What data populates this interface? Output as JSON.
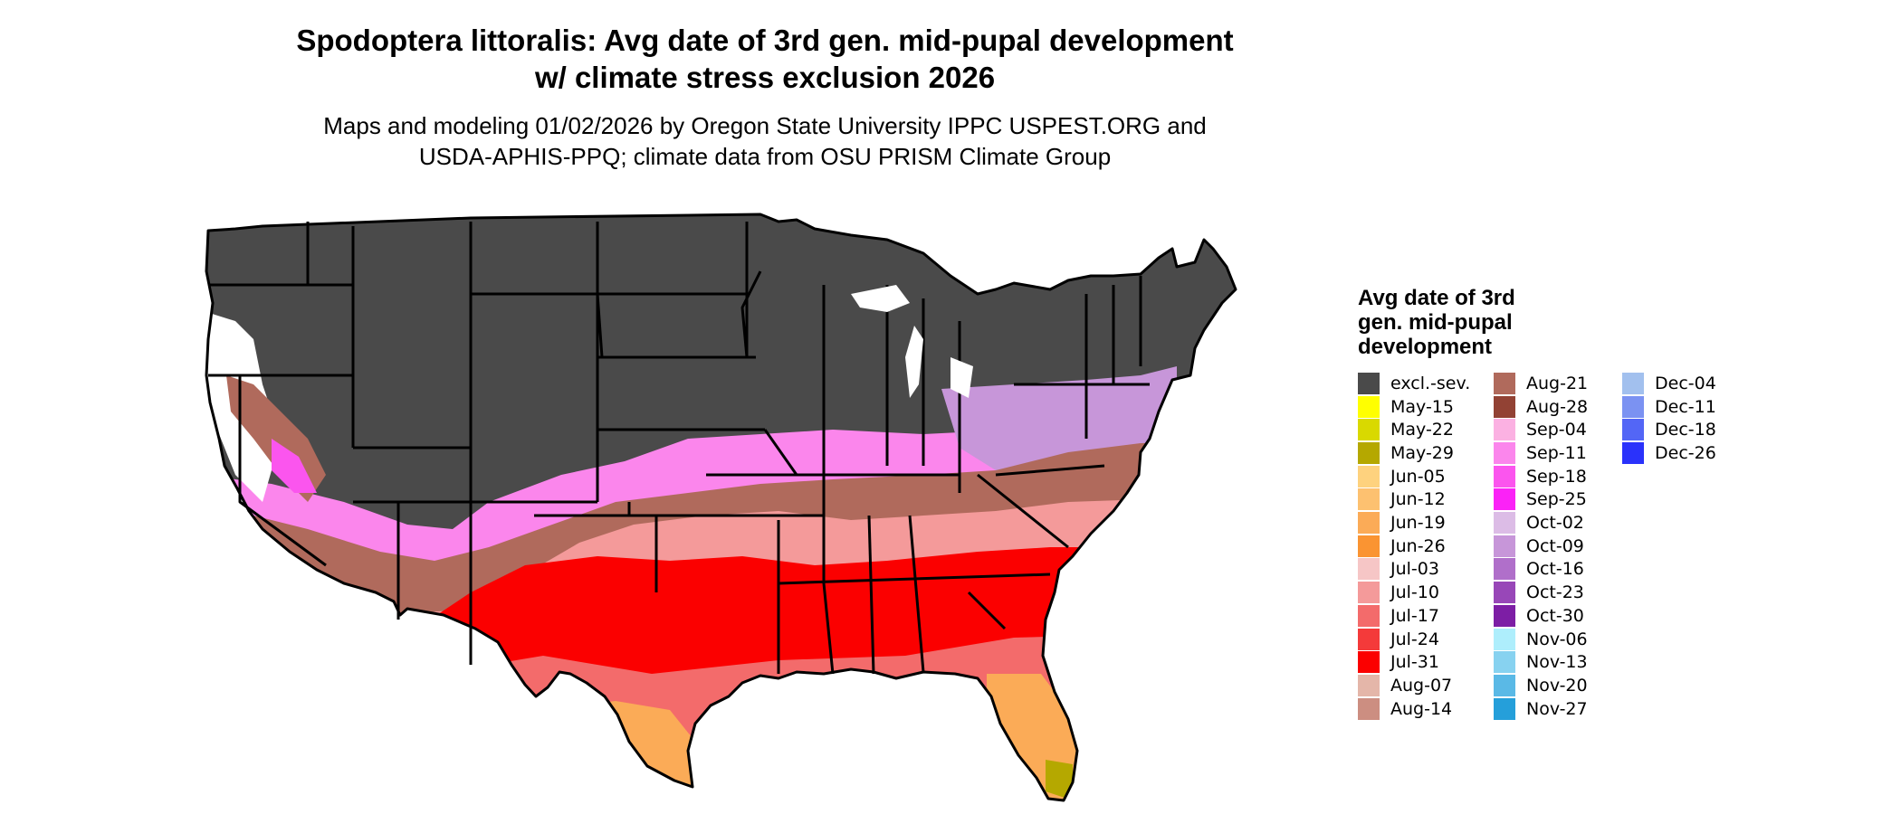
{
  "title_line1": "Spodoptera littoralis: Avg date of 3rd gen. mid-pupal development",
  "title_line2": "w/ climate stress exclusion 2026",
  "subtitle_line1": "Maps and modeling 01/02/2026 by Oregon State University IPPC USPEST.ORG and",
  "subtitle_line2": "USDA-APHIS-PPQ; climate data from OSU PRISM Climate Group",
  "legend": {
    "title_lines": [
      "Avg date of 3rd",
      "gen. mid-pupal",
      "development"
    ],
    "items": [
      {
        "label": "excl.-sev.",
        "color": "#4a4a4a"
      },
      {
        "label": "May-15",
        "color": "#ffff00"
      },
      {
        "label": "May-22",
        "color": "#d9d900"
      },
      {
        "label": "May-29",
        "color": "#b5a800"
      },
      {
        "label": "Jun-05",
        "color": "#fed27e"
      },
      {
        "label": "Jun-12",
        "color": "#fdc170"
      },
      {
        "label": "Jun-19",
        "color": "#fbab57"
      },
      {
        "label": "Jun-26",
        "color": "#fa9432"
      },
      {
        "label": "Jul-03",
        "color": "#f6c6c6"
      },
      {
        "label": "Jul-10",
        "color": "#f49a9a"
      },
      {
        "label": "Jul-17",
        "color": "#f36b6b"
      },
      {
        "label": "Jul-24",
        "color": "#f43a3a"
      },
      {
        "label": "Jul-31",
        "color": "#fb0000"
      },
      {
        "label": "Aug-07",
        "color": "#e4b6a9"
      },
      {
        "label": "Aug-14",
        "color": "#cc8e81"
      },
      {
        "label": "Aug-21",
        "color": "#b06a5c"
      },
      {
        "label": "Aug-28",
        "color": "#924234"
      },
      {
        "label": "Sep-04",
        "color": "#fbb1e2"
      },
      {
        "label": "Sep-11",
        "color": "#fb86ec"
      },
      {
        "label": "Sep-18",
        "color": "#fb55ee"
      },
      {
        "label": "Sep-25",
        "color": "#fb22f7"
      },
      {
        "label": "Oct-02",
        "color": "#dcbce6"
      },
      {
        "label": "Oct-09",
        "color": "#c796d9"
      },
      {
        "label": "Oct-16",
        "color": "#b06fca"
      },
      {
        "label": "Oct-23",
        "color": "#9847b8"
      },
      {
        "label": "Oct-30",
        "color": "#7d1ea5"
      },
      {
        "label": "Nov-06",
        "color": "#aeeefc"
      },
      {
        "label": "Nov-13",
        "color": "#87d2f0"
      },
      {
        "label": "Nov-20",
        "color": "#5ab9e6"
      },
      {
        "label": "Nov-27",
        "color": "#259fda"
      },
      {
        "label": "Dec-04",
        "color": "#a2c0ee"
      },
      {
        "label": "Dec-11",
        "color": "#7b92f2"
      },
      {
        "label": "Dec-18",
        "color": "#5366f6"
      },
      {
        "label": "Dec-26",
        "color": "#2a32fb"
      }
    ]
  }
}
